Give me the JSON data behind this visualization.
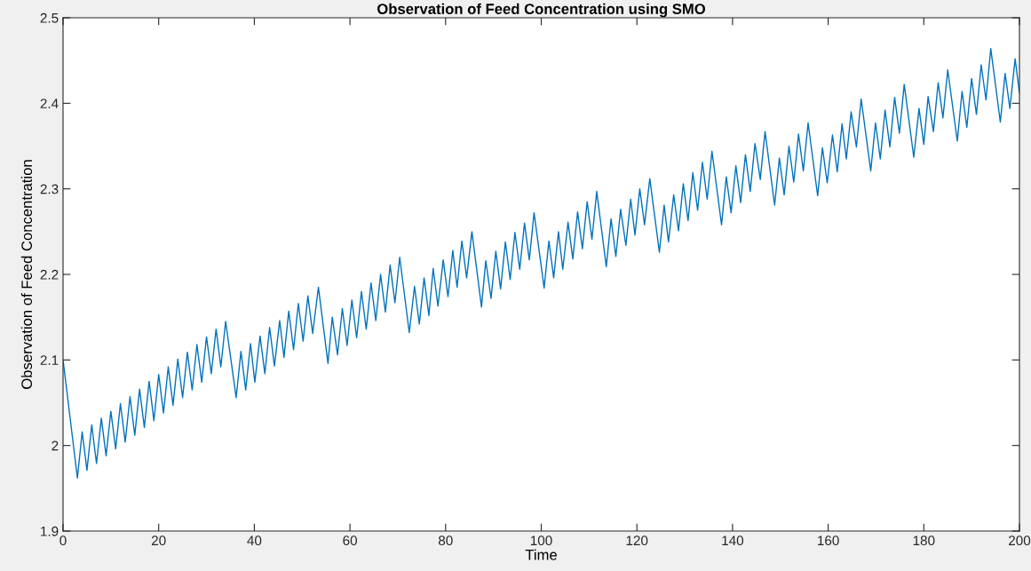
{
  "chart_data": {
    "type": "line",
    "title": "Observation of Feed Concentration using SMO",
    "xlabel": "Time",
    "ylabel": "Observation of Feed Concentration",
    "xlim": [
      0,
      200
    ],
    "xticks": [
      0,
      20,
      40,
      60,
      80,
      100,
      120,
      140,
      160,
      180,
      200
    ],
    "ylim": [
      1.9,
      2.5
    ],
    "yticks": [
      1.9,
      2,
      2.1,
      2.2,
      2.3,
      2.4,
      2.5
    ],
    "grid": false,
    "legend": false,
    "series": [
      {
        "color": "#0072bd",
        "x": [
          0,
          3,
          4,
          5,
          6,
          7,
          8,
          9,
          10,
          11,
          12,
          13,
          14,
          15,
          16,
          17,
          18,
          19,
          20,
          21,
          22,
          23,
          24,
          25,
          26,
          27,
          28,
          29,
          30,
          31,
          32,
          33,
          34,
          36.2,
          37.2,
          38.2,
          39.2,
          40.1,
          41.2,
          42.2,
          43.2,
          44.2,
          45.3,
          46.2,
          47.2,
          48.2,
          49.2,
          50.2,
          51.2,
          52.2,
          53.4,
          55.4,
          56.3,
          57.4,
          58.4,
          59.4,
          60.4,
          61.4,
          62.4,
          63.4,
          64.4,
          65.4,
          66.4,
          67.4,
          68.4,
          69.4,
          70.4,
          72.4,
          73.5,
          74.5,
          75.5,
          76.5,
          77.4,
          78.4,
          79.5,
          80.5,
          81.5,
          82.4,
          83.4,
          84.4,
          85.5,
          87.5,
          88.4,
          89.5,
          90.5,
          91.5,
          92.5,
          93.5,
          94.5,
          95.5,
          96.5,
          97.5,
          98.5,
          100.6,
          101.6,
          102.6,
          103.6,
          104.5,
          105.6,
          106.6,
          107.6,
          108.6,
          109.6,
          110.6,
          111.6,
          113.6,
          114.6,
          115.6,
          116.6,
          117.7,
          118.7,
          119.6,
          120.6,
          121.6,
          122.7,
          124.7,
          125.7,
          126.6,
          127.7,
          128.7,
          129.7,
          130.7,
          131.7,
          132.7,
          133.7,
          134.7,
          135.7,
          137.7,
          138.7,
          139.7,
          140.7,
          141.7,
          142.7,
          143.7,
          144.7,
          145.8,
          146.8,
          148.8,
          149.8,
          150.8,
          151.8,
          152.8,
          153.8,
          154.8,
          155.8,
          157.8,
          158.8,
          159.8,
          160.9,
          161.9,
          162.9,
          163.8,
          164.8,
          165.9,
          166.9,
          168.9,
          169.9,
          170.9,
          171.9,
          172.9,
          173.9,
          174.9,
          175.9,
          177.9,
          179,
          180,
          180.9,
          182,
          183,
          184,
          185,
          187,
          188,
          189,
          190,
          191,
          192,
          193,
          194,
          196,
          197,
          198,
          199.1,
          200
        ],
        "values": [
          2.1,
          1.962,
          2.016,
          1.971,
          2.024,
          1.979,
          2.032,
          1.988,
          2.04,
          1.996,
          2.049,
          2.004,
          2.057,
          2.012,
          2.066,
          2.021,
          2.075,
          2.029,
          2.083,
          2.038,
          2.092,
          2.047,
          2.101,
          2.056,
          2.109,
          2.065,
          2.118,
          2.074,
          2.127,
          2.084,
          2.136,
          2.092,
          2.145,
          2.056,
          2.11,
          2.065,
          2.119,
          2.074,
          2.128,
          2.084,
          2.138,
          2.093,
          2.146,
          2.103,
          2.157,
          2.112,
          2.166,
          2.122,
          2.175,
          2.131,
          2.185,
          2.096,
          2.15,
          2.106,
          2.16,
          2.117,
          2.17,
          2.126,
          2.18,
          2.136,
          2.19,
          2.146,
          2.2,
          2.156,
          2.211,
          2.167,
          2.22,
          2.132,
          2.186,
          2.142,
          2.196,
          2.152,
          2.207,
          2.163,
          2.217,
          2.174,
          2.228,
          2.185,
          2.239,
          2.196,
          2.25,
          2.162,
          2.216,
          2.172,
          2.227,
          2.183,
          2.238,
          2.194,
          2.249,
          2.206,
          2.26,
          2.217,
          2.272,
          2.184,
          2.239,
          2.196,
          2.25,
          2.206,
          2.261,
          2.218,
          2.273,
          2.23,
          2.285,
          2.241,
          2.297,
          2.209,
          2.265,
          2.221,
          2.276,
          2.234,
          2.288,
          2.246,
          2.3,
          2.258,
          2.312,
          2.226,
          2.281,
          2.238,
          2.293,
          2.251,
          2.306,
          2.263,
          2.319,
          2.275,
          2.331,
          2.288,
          2.344,
          2.258,
          2.314,
          2.272,
          2.327,
          2.284,
          2.34,
          2.297,
          2.353,
          2.311,
          2.367,
          2.281,
          2.336,
          2.293,
          2.35,
          2.308,
          2.364,
          2.321,
          2.377,
          2.292,
          2.348,
          2.307,
          2.363,
          2.32,
          2.376,
          2.335,
          2.39,
          2.349,
          2.405,
          2.321,
          2.377,
          2.335,
          2.392,
          2.349,
          2.407,
          2.365,
          2.422,
          2.337,
          2.394,
          2.352,
          2.408,
          2.367,
          2.424,
          2.383,
          2.439,
          2.356,
          2.414,
          2.372,
          2.429,
          2.387,
          2.445,
          2.404,
          2.464,
          2.378,
          2.435,
          2.394,
          2.452,
          2.412
        ]
      }
    ]
  }
}
